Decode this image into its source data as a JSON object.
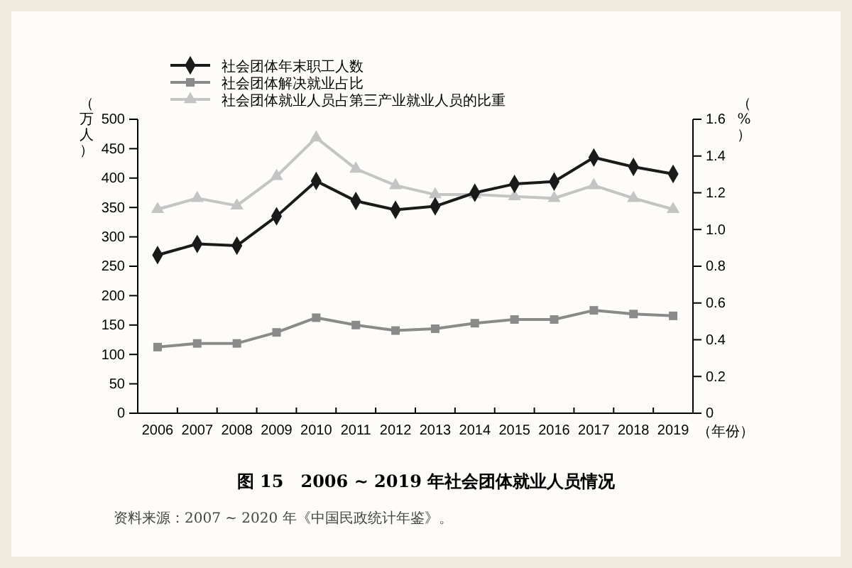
{
  "chart_data": {
    "type": "line",
    "title": "图 15　2006 ~ 2019 年社会团体就业人员情况",
    "annotations": [
      "资料来源：2007 ~ 2020 年《中国民政统计年鉴》。"
    ],
    "categories": [
      "2006",
      "2007",
      "2008",
      "2009",
      "2010",
      "2011",
      "2012",
      "2013",
      "2014",
      "2015",
      "2016",
      "2017",
      "2018",
      "2019"
    ],
    "xlabel": "（年份）",
    "ylabel": "（万人）",
    "y2label": "（%）",
    "ylim": [
      0,
      500
    ],
    "yticks": [
      0,
      50,
      100,
      150,
      200,
      250,
      300,
      350,
      400,
      450,
      500
    ],
    "y2lim": [
      0,
      1.6
    ],
    "y2ticks": [
      {
        "value": 0,
        "label": "0"
      },
      {
        "value": 0.2,
        "label": "0.2"
      },
      {
        "value": 0.4,
        "label": "0.4"
      },
      {
        "value": 0.6,
        "label": "0.6"
      },
      {
        "value": 0.8,
        "label": "0.8"
      },
      {
        "value": 1,
        "label": "1.0"
      },
      {
        "value": 1.2,
        "label": "1.2"
      },
      {
        "value": 1.4,
        "label": "1.4"
      },
      {
        "value": 1.6,
        "label": "1.6"
      }
    ],
    "legend": "top left",
    "grid": false,
    "series": [
      {
        "name": "社会团体年末职工人数",
        "color": "#1a1a1a",
        "marker": "diamond",
        "values": [
          269,
          288,
          285,
          335,
          395,
          361,
          346,
          352,
          375,
          390,
          394,
          435,
          419,
          407
        ]
      },
      {
        "name": "社会团体解决就业占比",
        "color": "#8a8a8a",
        "marker": "square",
        "axis": "y2",
        "values": [
          0.36,
          0.38,
          0.38,
          0.44,
          0.52,
          0.48,
          0.45,
          0.46,
          0.49,
          0.51,
          0.51,
          0.56,
          0.54,
          0.53
        ]
      },
      {
        "name": "社会团体就业人员占第三产业就业人员的比重",
        "color": "#c4c4c4",
        "marker": "triangle",
        "axis": "y2",
        "values": [
          1.11,
          1.17,
          1.13,
          1.29,
          1.5,
          1.33,
          1.24,
          1.19,
          1.19,
          1.18,
          1.17,
          1.24,
          1.17,
          1.11
        ]
      }
    ]
  }
}
